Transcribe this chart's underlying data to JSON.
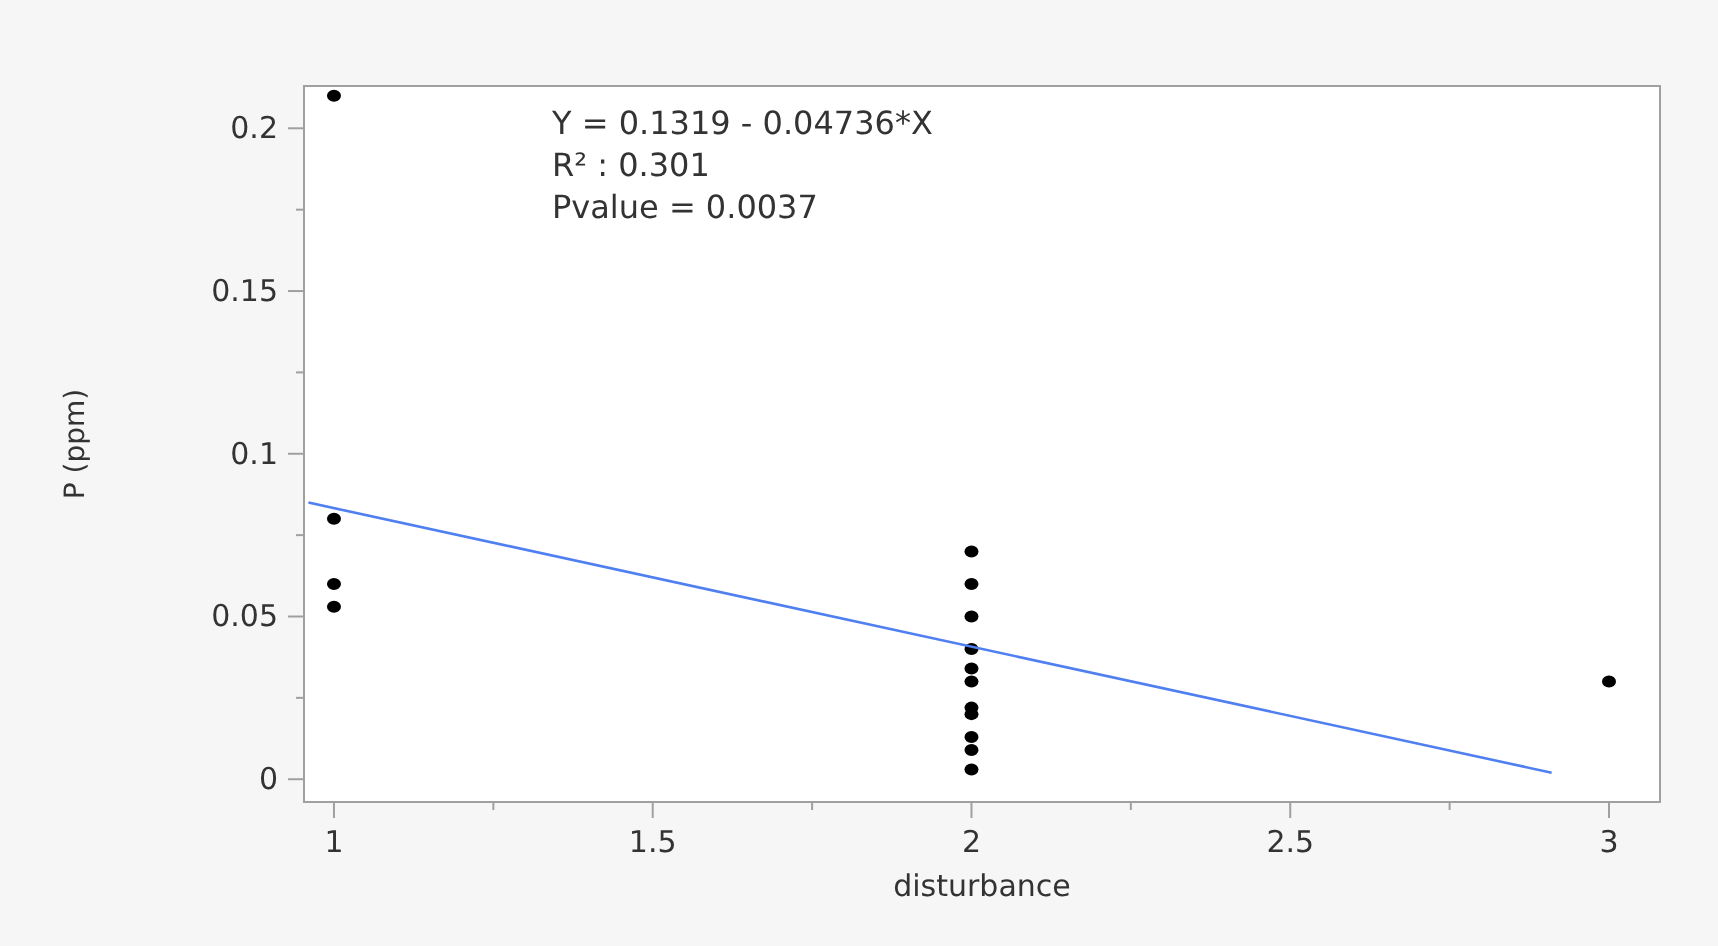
{
  "chart_data": {
    "type": "scatter",
    "xlabel": "disturbance",
    "ylabel": "P (ppm)",
    "annotations": [
      "Y = 0.1319 - 0.04736*X",
      "R² : 0.301",
      "Pvalue = 0.0037"
    ],
    "xlim": [
      0.953,
      3.08
    ],
    "ylim": [
      -0.007,
      0.213
    ],
    "xticks": [
      1,
      {
        "value": 1.25,
        "label": null
      },
      1.5,
      {
        "value": 1.75,
        "label": null
      },
      2,
      {
        "value": 2.25,
        "label": null
      },
      2.5,
      {
        "value": 2.75,
        "label": null
      },
      3
    ],
    "yticks": [
      0,
      {
        "value": 0.025,
        "label": null
      },
      0.05,
      {
        "value": 0.075,
        "label": null
      },
      0.1,
      {
        "value": 0.125,
        "label": null
      },
      0.15,
      {
        "value": 0.175,
        "label": null
      },
      0.2
    ],
    "grid": false,
    "marker": "circle",
    "series": [
      {
        "color": "#000000",
        "x": [
          1,
          1,
          1,
          1,
          2,
          2,
          2,
          2,
          2,
          2,
          2,
          2,
          2,
          2,
          2,
          3
        ],
        "values": [
          0.21,
          0.08,
          0.06,
          0.053,
          0.07,
          0.06,
          0.05,
          0.04,
          0.034,
          0.03,
          0.022,
          0.02,
          0.013,
          0.009,
          0.003,
          0.03
        ]
      },
      {
        "type": "line",
        "color": "#4f7ff0",
        "marker": "none",
        "x": [
          0.96,
          2.91
        ],
        "values": [
          0.085,
          0.002
        ]
      }
    ]
  }
}
